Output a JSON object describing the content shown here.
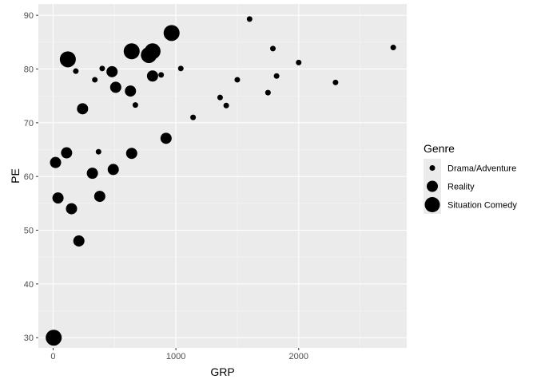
{
  "chart_data": {
    "type": "scatter",
    "xlabel": "GRP",
    "ylabel": "PE",
    "xlim": [
      -120,
      2880
    ],
    "ylim": [
      28.1,
      92.1
    ],
    "x_ticks": [
      0,
      1000,
      2000
    ],
    "x_tick_labels": [
      "0",
      "1000",
      "2000"
    ],
    "y_ticks": [
      30,
      40,
      50,
      60,
      70,
      80,
      90
    ],
    "y_tick_labels": [
      "30",
      "40",
      "50",
      "60",
      "70",
      "80",
      "90"
    ],
    "grid": true,
    "background_color": "#ebebeb",
    "point_color": "#000000",
    "legend": {
      "title": "Genre",
      "placement": "right",
      "entries": [
        "Drama/Adventure",
        "Reality",
        "Situation Comedy"
      ]
    },
    "series": [
      {
        "name": "Drama/Adventure",
        "size": "small",
        "points": [
          [
            185,
            79.6
          ],
          [
            340,
            78.0
          ],
          [
            370,
            64.6
          ],
          [
            400,
            80.1
          ],
          [
            670,
            73.3
          ],
          [
            880,
            78.9
          ],
          [
            1040,
            80.1
          ],
          [
            1140,
            71.0
          ],
          [
            1360,
            74.7
          ],
          [
            1410,
            73.2
          ],
          [
            1500,
            78.0
          ],
          [
            1600,
            89.3
          ],
          [
            1750,
            75.6
          ],
          [
            1790,
            83.8
          ],
          [
            1820,
            78.7
          ],
          [
            2000,
            81.2
          ],
          [
            2300,
            77.5
          ],
          [
            2770,
            84.0
          ]
        ]
      },
      {
        "name": "Reality",
        "size": "medium",
        "points": [
          [
            20,
            62.6
          ],
          [
            40,
            56.0
          ],
          [
            110,
            64.4
          ],
          [
            150,
            54.0
          ],
          [
            210,
            48.0
          ],
          [
            240,
            72.6
          ],
          [
            320,
            60.6
          ],
          [
            380,
            56.3
          ],
          [
            480,
            79.5
          ],
          [
            490,
            61.3
          ],
          [
            510,
            76.6
          ],
          [
            630,
            75.9
          ],
          [
            640,
            64.3
          ],
          [
            810,
            78.7
          ],
          [
            920,
            67.1
          ]
        ]
      },
      {
        "name": "Situation Comedy",
        "size": "large",
        "points": [
          [
            5,
            30.0
          ],
          [
            120,
            81.8
          ],
          [
            640,
            83.3
          ],
          [
            780,
            82.6
          ],
          [
            810,
            83.3
          ],
          [
            965,
            86.7
          ]
        ]
      }
    ]
  }
}
